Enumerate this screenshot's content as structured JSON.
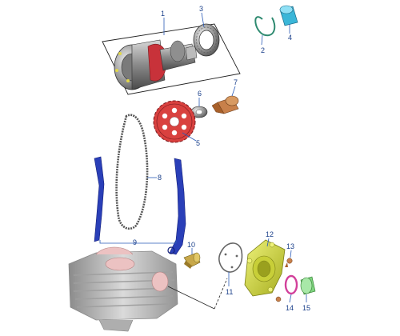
{
  "callouts": [
    {
      "id": "1",
      "label": "1"
    },
    {
      "id": "2",
      "label": "2"
    },
    {
      "id": "3",
      "label": "3"
    },
    {
      "id": "4",
      "label": "4"
    },
    {
      "id": "5",
      "label": "5"
    },
    {
      "id": "6",
      "label": "6"
    },
    {
      "id": "7",
      "label": "7"
    },
    {
      "id": "8",
      "label": "8"
    },
    {
      "id": "9",
      "label": "9"
    },
    {
      "id": "10",
      "label": "10"
    },
    {
      "id": "11",
      "label": "11"
    },
    {
      "id": "12",
      "label": "12"
    },
    {
      "id": "13",
      "label": "13"
    },
    {
      "id": "14",
      "label": "14"
    },
    {
      "id": "15",
      "label": "15"
    }
  ],
  "colors": {
    "callout": "#1a3f8a",
    "camshaft": "#8e8e8e",
    "lobe": "#c8323a",
    "sprocket": "#d9413f",
    "chain": "#555555",
    "guide": "#2a3fb8",
    "clip": "#3aa08a",
    "cap": "#3ab6d8",
    "housing": "#d9e24a",
    "gasket_ring": "#d2409a",
    "plug": "#7ed37e",
    "bolt": "#c8804a",
    "cylinder": "#a9a9a9"
  }
}
